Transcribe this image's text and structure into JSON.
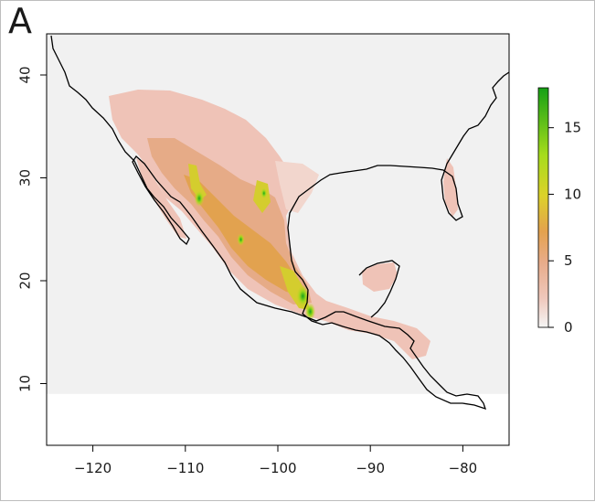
{
  "panel_label": "A",
  "colors": {
    "background_fill": "#f1f1f1",
    "land_outline": "#000000",
    "scale": [
      "#f2f2f2",
      "#eec4b8",
      "#e8ad88",
      "#e4a34f",
      "#d8cf2b",
      "#9bd81b",
      "#1ba31b"
    ]
  },
  "chart_data": {
    "type": "heatmap",
    "xlim": [
      -125,
      -75
    ],
    "ylim": [
      4,
      44
    ],
    "raster_extent": {
      "lon": [
        -125,
        -75
      ],
      "lat": [
        9,
        44
      ]
    },
    "x_ticks": [
      -120,
      -110,
      -100,
      -90,
      -80
    ],
    "x_tick_labels": [
      "−120",
      "−110",
      "−100",
      "−90",
      "−80"
    ],
    "y_ticks": [
      10,
      20,
      30,
      40
    ],
    "y_tick_labels": [
      "10",
      "20",
      "30",
      "40"
    ],
    "legend": {
      "placement": "right",
      "range": [
        0,
        18
      ],
      "ticks": [
        0,
        5,
        10,
        15
      ],
      "tick_labels": [
        "0",
        "5",
        "10",
        "15"
      ]
    },
    "high_value_areas": [
      {
        "lon": -97.3,
        "lat": 18.5,
        "value": 17
      },
      {
        "lon": -96.5,
        "lat": 17.0,
        "value": 12
      },
      {
        "lon": -108.5,
        "lat": 28.0,
        "value": 11
      },
      {
        "lon": -104.0,
        "lat": 24.0,
        "value": 7
      },
      {
        "lon": -101.5,
        "lat": 28.5,
        "value": 6
      }
    ]
  }
}
